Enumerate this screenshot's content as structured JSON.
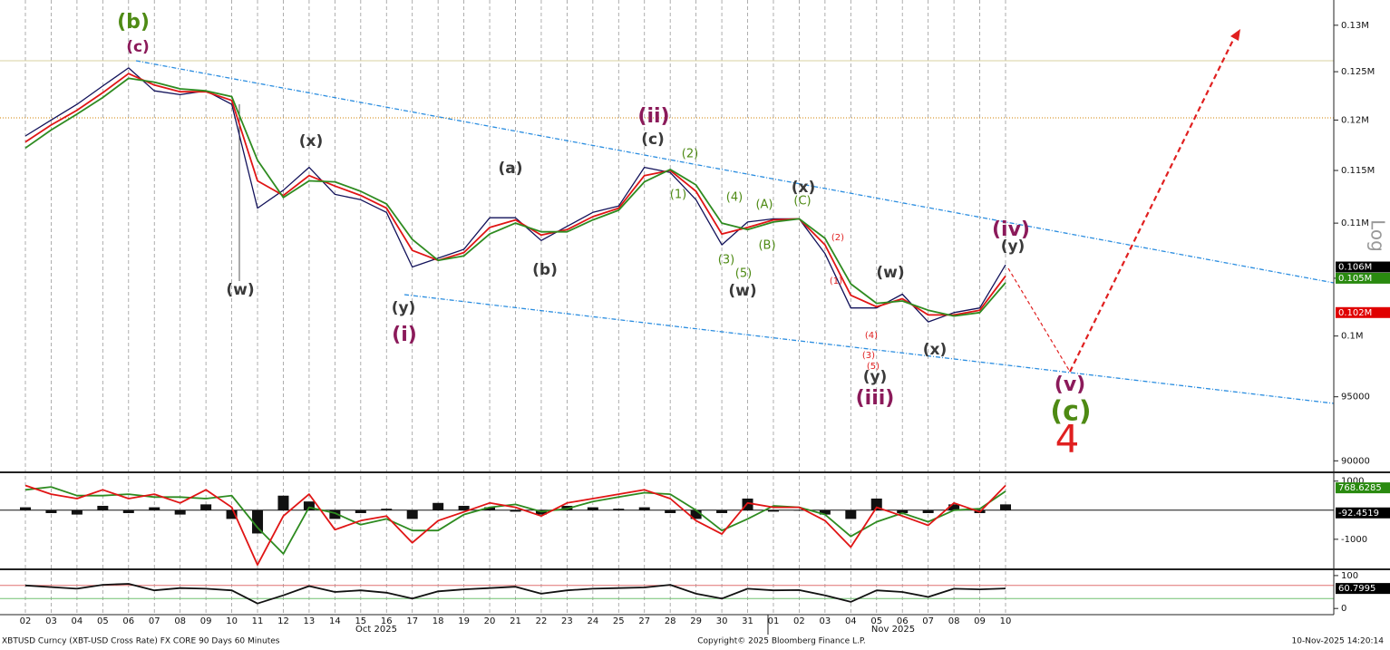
{
  "chart_data": [
    {
      "type": "line",
      "log_scale": true,
      "grid": true,
      "categories": [
        "02",
        "03",
        "04",
        "05",
        "06",
        "07",
        "08",
        "09",
        "10",
        "11",
        "12",
        "13",
        "14",
        "15",
        "16",
        "17",
        "18",
        "19",
        "20",
        "21",
        "22",
        "23",
        "24",
        "25",
        "27",
        "28",
        "29",
        "30",
        "31",
        "01",
        "02",
        "03",
        "04",
        "05",
        "06",
        "07",
        "08",
        "09",
        "10"
      ],
      "x_sublabels": [
        "Oct 2025",
        "Nov 2025"
      ],
      "series": [
        {
          "color": "#12125a",
          "values": [
            118400,
            120000,
            121600,
            123500,
            125400,
            123000,
            122600,
            123000,
            121600,
            111400,
            113100,
            115300,
            112700,
            112200,
            111000,
            106000,
            106800,
            107600,
            110500,
            110500,
            108400,
            109700,
            111000,
            111600,
            115300,
            114800,
            112200,
            108000,
            110100,
            110400,
            110400,
            107200,
            102400,
            102400,
            103600,
            101200,
            102000,
            102400,
            106200
          ]
        },
        {
          "color": "#e01515",
          "values": [
            117800,
            119500,
            121000,
            122800,
            124800,
            123600,
            122900,
            122900,
            122000,
            114000,
            112600,
            114500,
            113500,
            112600,
            111400,
            107500,
            106600,
            107300,
            109600,
            110300,
            108900,
            109400,
            110600,
            111400,
            114500,
            115000,
            113000,
            109000,
            109600,
            110300,
            110400,
            108000,
            103500,
            102500,
            103200,
            101800,
            101800,
            102200,
            105200
          ]
        },
        {
          "color": "#2e8b20",
          "values": [
            117200,
            119000,
            120600,
            122300,
            124300,
            123900,
            123200,
            123000,
            122400,
            116000,
            112400,
            114000,
            113900,
            113000,
            111800,
            108500,
            106600,
            107000,
            109000,
            110000,
            109200,
            109200,
            110300,
            111200,
            113900,
            115100,
            113600,
            110000,
            109400,
            110100,
            110400,
            108600,
            104500,
            102800,
            103000,
            102200,
            101700,
            102000,
            104600
          ]
        }
      ],
      "ylim": [
        89200,
        132800
      ],
      "yticks": [
        {
          "value": 130000,
          "label": "0.13M"
        },
        {
          "value": 125000,
          "label": "0.125M"
        },
        {
          "value": 120000,
          "label": "0.12M"
        },
        {
          "value": 115000,
          "label": "0.115M"
        },
        {
          "value": 110000,
          "label": "0.11M"
        },
        {
          "value": 105000,
          "label": "0.105M"
        },
        {
          "value": 100000,
          "label": "0.1M"
        },
        95000,
        90000
      ],
      "scale_label": "Log",
      "tags": [
        {
          "value": 106000,
          "label": "0.106M",
          "color": "#000000"
        },
        {
          "value": 105000,
          "label": "0.105M",
          "color": "#2a8a10"
        },
        {
          "value": 102000,
          "label": "0.102M",
          "color": "#e00000"
        }
      ],
      "annotations": [
        "(b)",
        "(c)",
        "(x)",
        "(w)",
        "(y)",
        "(i)",
        "(a)",
        "(b)",
        "(ii)",
        "(c)",
        "(2)",
        "(1)",
        "(4)",
        "(A)",
        "(C)",
        "(x)",
        "(3)",
        "(5)",
        "(B)",
        "(w)",
        "(2)",
        "(1)",
        "(4)",
        "(3)",
        "(5)",
        "(y)",
        "(iii)",
        "(w)",
        "(x)",
        "(iv)",
        "(y)",
        "(v)",
        "(c)",
        "4"
      ]
    },
    {
      "type": "line",
      "series": [
        {
          "color": "#2e8b20",
          "values": [
            700,
            800,
            500,
            500,
            550,
            450,
            450,
            400,
            500,
            -600,
            -1500,
            100,
            -100,
            -500,
            -300,
            -700,
            -700,
            -150,
            100,
            200,
            -50,
            50,
            300,
            450,
            600,
            550,
            0,
            -700,
            -300,
            150,
            100,
            -150,
            -900,
            -400,
            -100,
            -400,
            0,
            50,
            650
          ]
        },
        {
          "color": "#e01515",
          "values": [
            850,
            550,
            400,
            700,
            400,
            550,
            250,
            700,
            100,
            -1880,
            -200,
            550,
            -670,
            -360,
            -200,
            -1120,
            -360,
            -60,
            250,
            100,
            -200,
            250,
            400,
            550,
            700,
            400,
            -360,
            -820,
            250,
            100,
            100,
            -360,
            -1270,
            100,
            -200,
            -520,
            250,
            -60,
            850
          ]
        }
      ],
      "histogram": {
        "color": "#111111",
        "values": [
          100,
          -100,
          -150,
          150,
          -100,
          100,
          -150,
          200,
          -300,
          -800,
          500,
          300,
          -300,
          -100,
          50,
          -300,
          250,
          150,
          100,
          -50,
          -150,
          150,
          100,
          50,
          100,
          -100,
          -300,
          -100,
          400,
          -50,
          0,
          -150,
          -300,
          400,
          -100,
          -100,
          200,
          -100,
          200
        ]
      },
      "ylim": [
        -1970,
        1240
      ],
      "yticks": [
        1000,
        -1000
      ],
      "zero_line": true,
      "tags": [
        {
          "value": 768.6285,
          "label": "768.6285",
          "color": "#2a8a10"
        },
        {
          "value": -92.4519,
          "label": "-92.4519",
          "color": "#000000"
        }
      ]
    },
    {
      "type": "line",
      "series": [
        {
          "color": "#111111",
          "values": [
            70,
            65,
            60,
            72,
            75,
            55,
            62,
            60,
            55,
            15,
            40,
            68,
            50,
            55,
            48,
            30,
            52,
            58,
            62,
            66,
            45,
            55,
            60,
            62,
            64,
            72,
            45,
            30,
            60,
            55,
            56,
            40,
            20,
            55,
            50,
            35,
            60,
            58,
            61
          ]
        }
      ],
      "reference_lines": [
        {
          "value": 70,
          "color": "#e07070"
        },
        {
          "value": 30,
          "color": "#70c070"
        }
      ],
      "ylim": [
        -16,
        113.5
      ],
      "yticks": [
        100,
        0
      ],
      "tags": [
        {
          "value": 60.7995,
          "label": "60.7995",
          "color": "#000000"
        }
      ]
    }
  ],
  "footer": {
    "left": "XBTUSD Curncy (XBT-USD Cross Rate) FX CORE 90 Days 60 Minutes",
    "center": "Copyright© 2025 Bloomberg Finance L.P.",
    "right": "10-Nov-2025 14:20:14"
  }
}
